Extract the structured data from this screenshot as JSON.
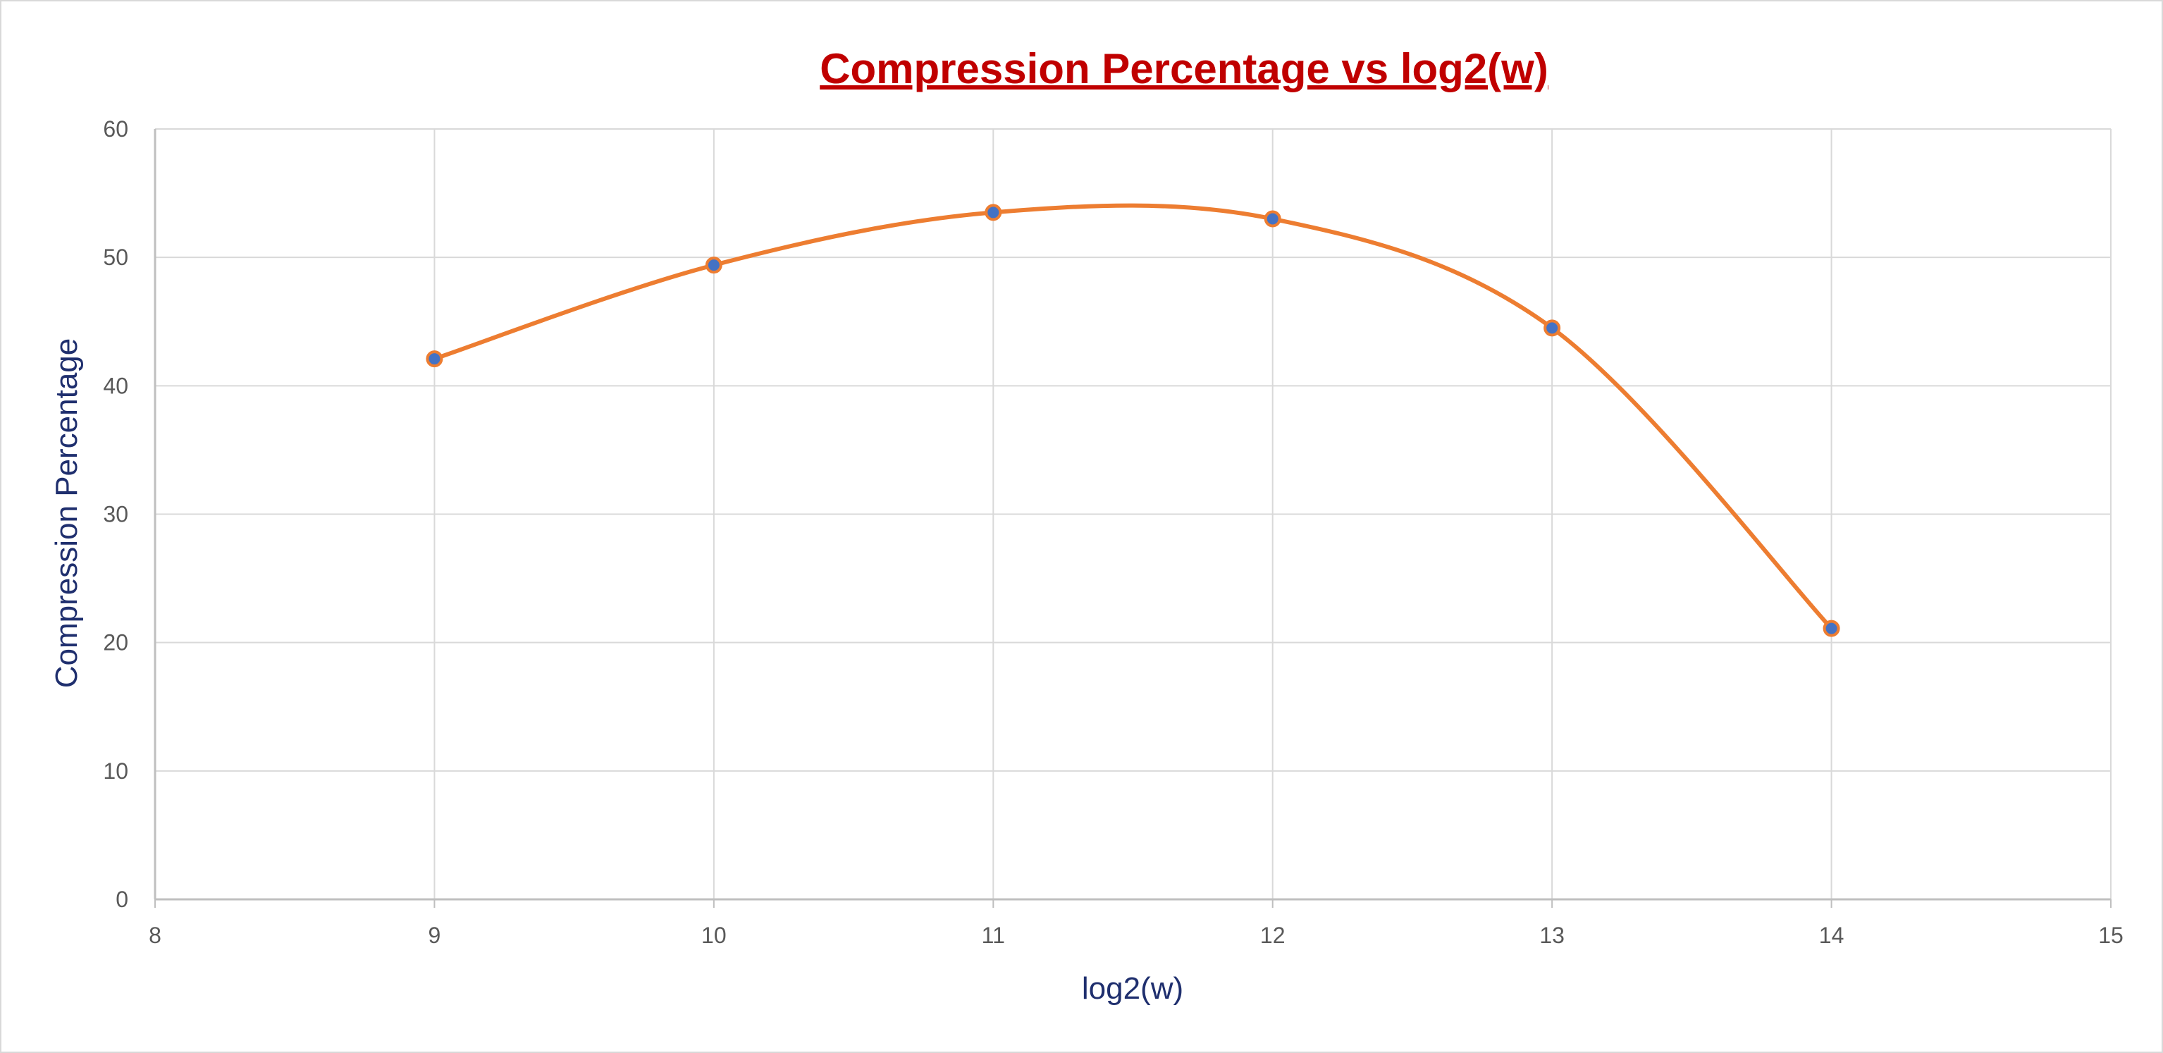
{
  "chart_data": {
    "type": "scatter",
    "title": "Compression Percentage vs log2(w)",
    "xlabel": "log2(w)",
    "ylabel": "Compression Percentage",
    "xlim": [
      8,
      15
    ],
    "ylim": [
      0,
      60
    ],
    "xticks": [
      8,
      9,
      10,
      11,
      12,
      13,
      14,
      15
    ],
    "yticks": [
      0,
      10,
      20,
      30,
      40,
      50,
      60
    ],
    "grid": true,
    "smooth": true,
    "series": [
      {
        "x": [
          9,
          10,
          11,
          12,
          13,
          14
        ],
        "y": [
          42.1,
          49.4,
          53.5,
          53.0,
          44.5,
          21.1
        ]
      }
    ]
  },
  "colors": {
    "title": "#c00000",
    "axis_title": "#1f2f6e",
    "line": "#ed7d31",
    "marker_fill": "#4472c4",
    "marker_edge": "#ed7d31",
    "grid": "#d9d9d9",
    "axis": "#bfbfbf"
  }
}
